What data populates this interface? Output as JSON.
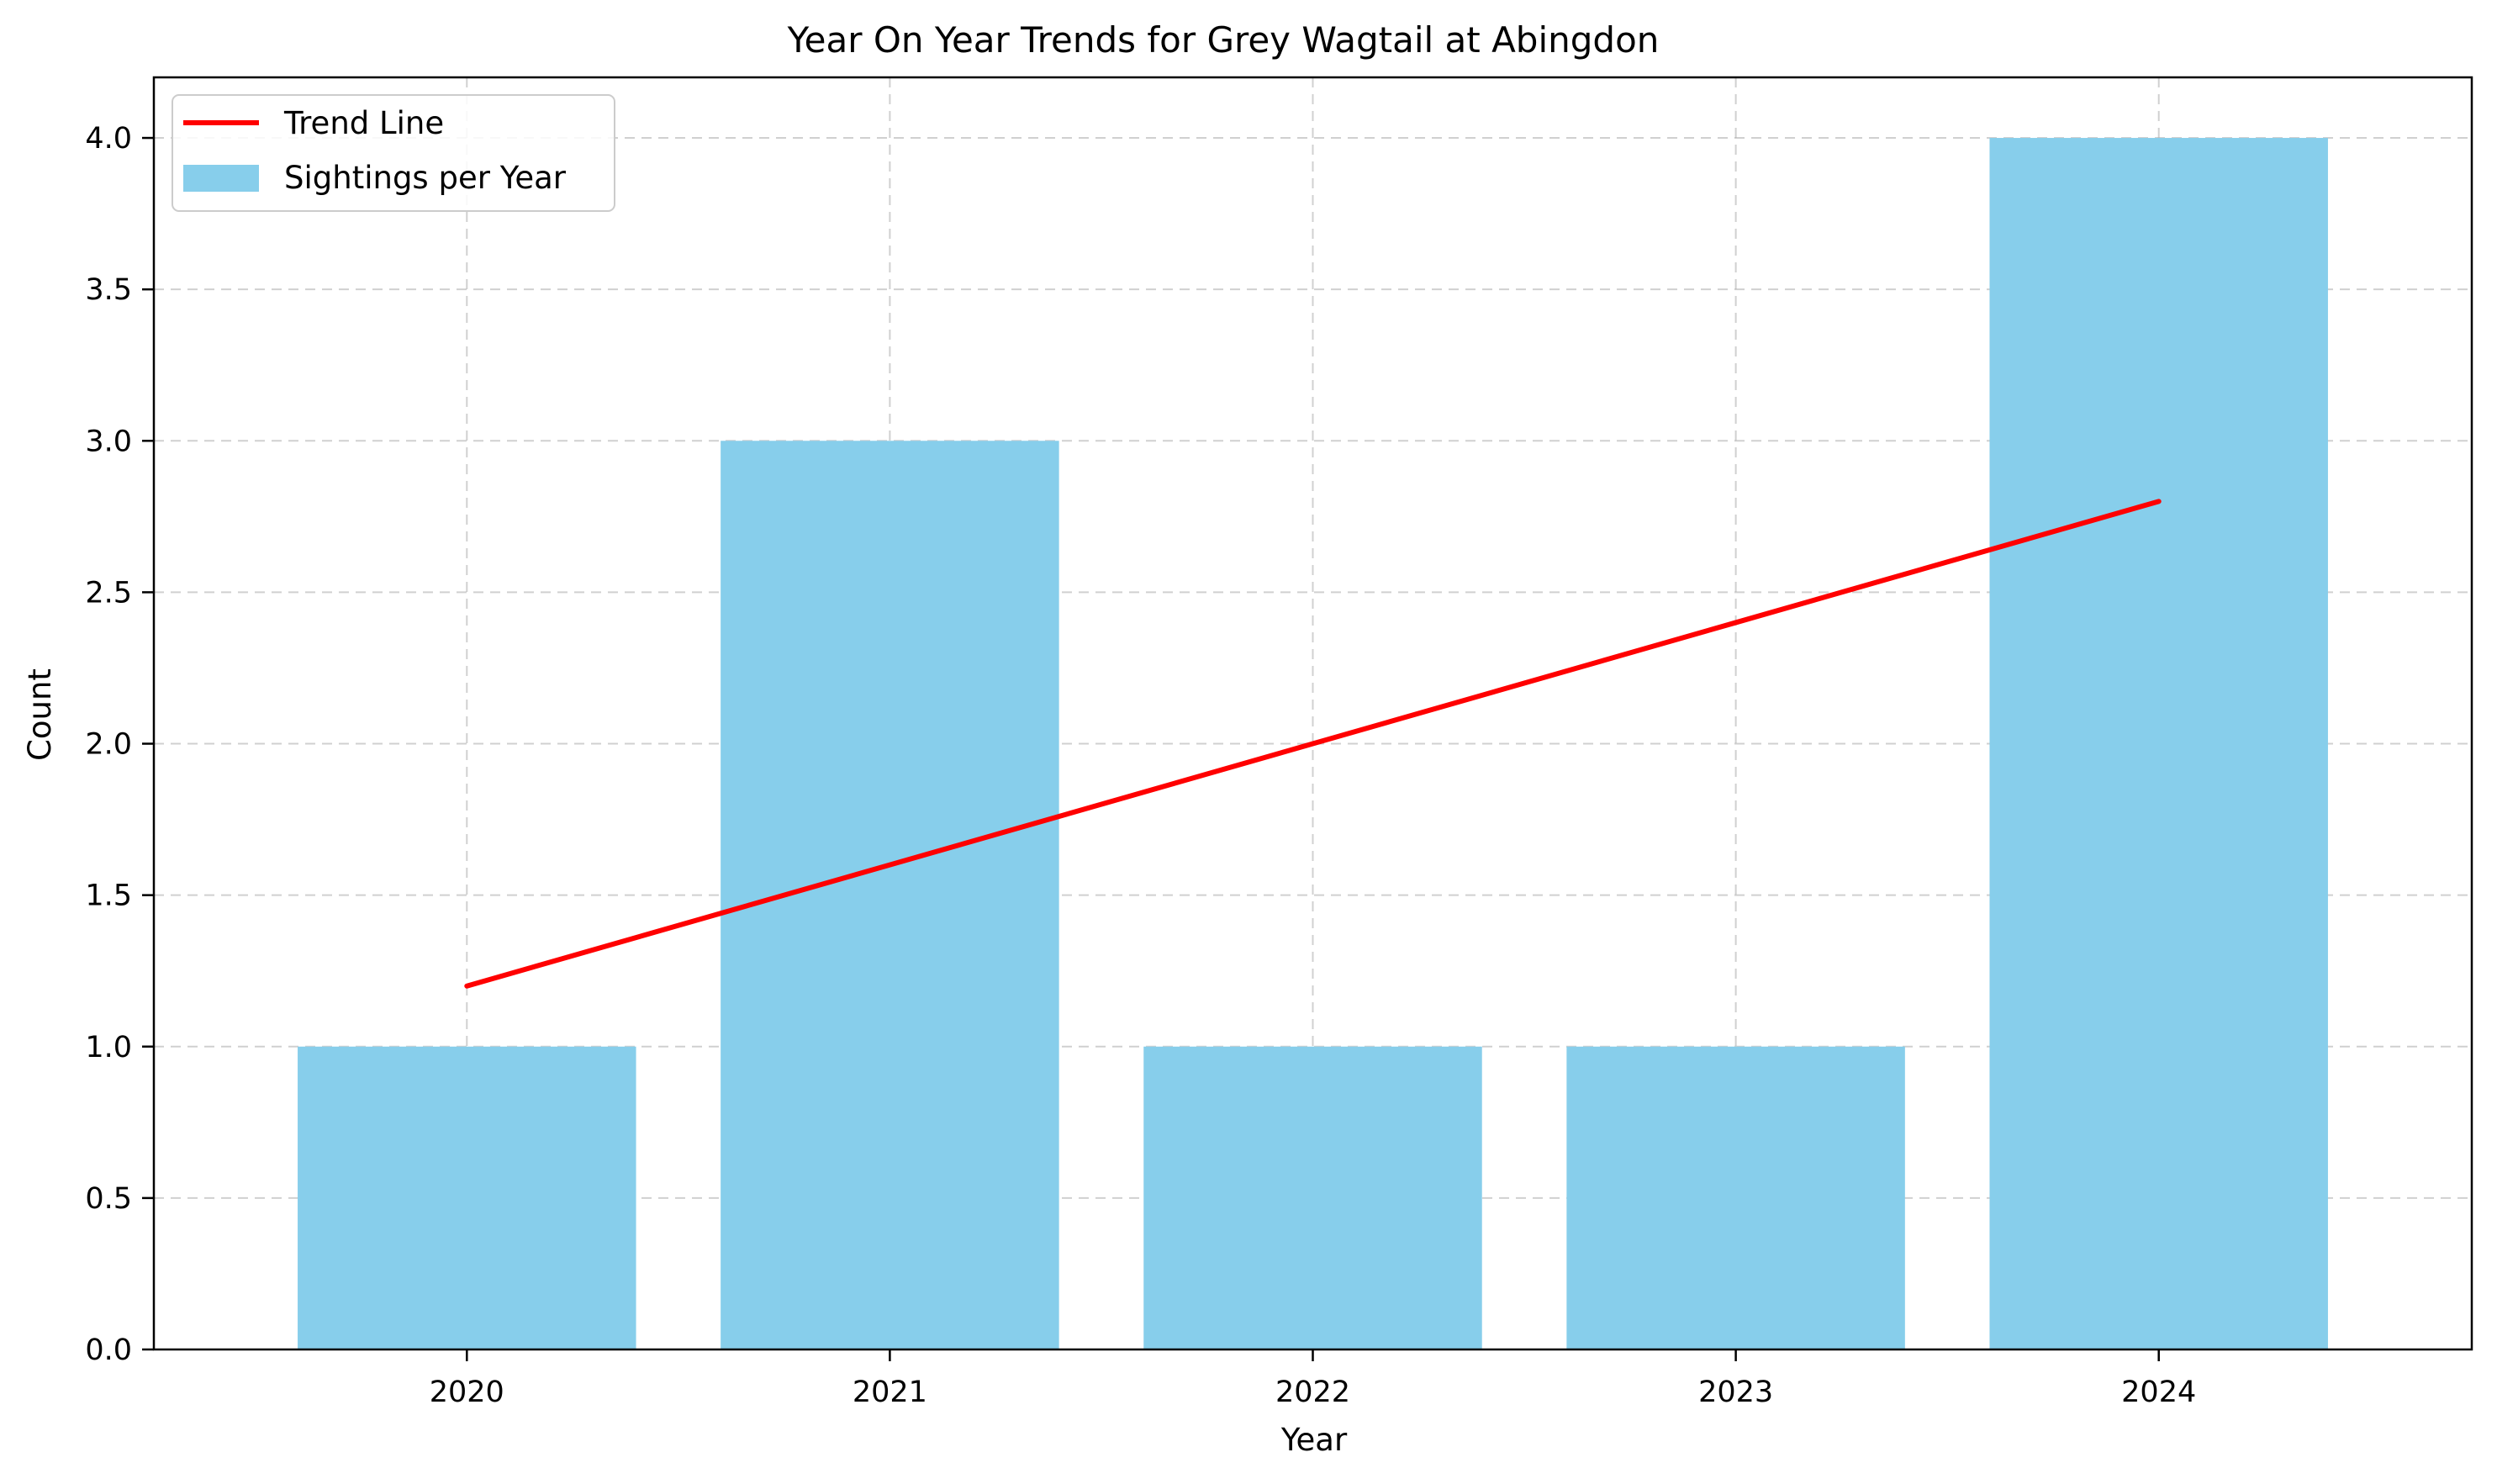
{
  "chart_data": {
    "type": "bar",
    "title": "Year On Year Trends for Grey Wagtail at Abingdon",
    "xlabel": "Year",
    "ylabel": "Count",
    "categories": [
      "2020",
      "2021",
      "2022",
      "2023",
      "2024"
    ],
    "series": [
      {
        "name": "Sightings per Year",
        "type": "bar",
        "values": [
          1,
          3,
          1,
          1,
          4
        ],
        "color": "#87CEEB"
      },
      {
        "name": "Trend Line",
        "type": "line",
        "values": [
          1.2,
          1.6,
          2.0,
          2.4,
          2.8
        ],
        "color": "#FF0000"
      }
    ],
    "ylim": [
      0,
      4.2
    ],
    "yticks": [
      "0.0",
      "0.5",
      "1.0",
      "1.5",
      "2.0",
      "2.5",
      "3.0",
      "3.5",
      "4.0"
    ],
    "grid": true,
    "legend_position": "top-left"
  }
}
